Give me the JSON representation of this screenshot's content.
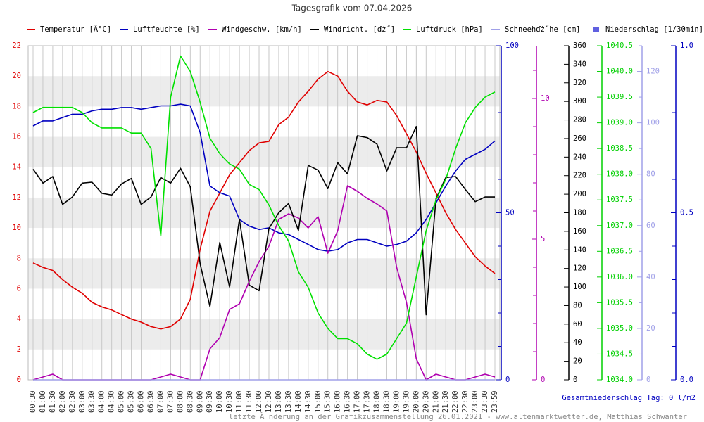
{
  "chart_data": {
    "type": "line",
    "title": "Tagesgrafik vom 07.04.2026",
    "annotations": [
      "Gesamtniederschlag Tag: 0 l/m2",
      "letzte Ä nderung an der Grafikzusammenstellung 26.01.2021 - www.altenmarktwetter.de, Matthias Schwanter"
    ],
    "categories": [
      "00:30",
      "01:00",
      "01:30",
      "02:00",
      "02:30",
      "03:00",
      "03:30",
      "04:00",
      "04:30",
      "05:00",
      "05:30",
      "06:00",
      "06:30",
      "07:00",
      "07:30",
      "08:00",
      "08:30",
      "09:00",
      "09:30",
      "10:00",
      "10:30",
      "11:00",
      "11:30",
      "12:00",
      "12:30",
      "13:00",
      "13:30",
      "14:00",
      "14:30",
      "15:00",
      "15:30",
      "16:00",
      "16:30",
      "17:00",
      "17:30",
      "18:00",
      "18:30",
      "19:00",
      "19:30",
      "20:00",
      "20:30",
      "21:00",
      "21:30",
      "22:00",
      "22:30",
      "23:00",
      "23:30",
      "23:59"
    ],
    "grid": true,
    "axes": [
      {
        "side": "left",
        "color": "#e00000",
        "ylim": [
          0,
          22
        ],
        "yticks": [
          0,
          2,
          4,
          6,
          8,
          10,
          12,
          14,
          16,
          18,
          20,
          22
        ]
      },
      {
        "side": "right",
        "color": "#0000c0",
        "ylim": [
          0,
          100
        ],
        "yticks": [
          0,
          50,
          100
        ],
        "minor_ticks": [
          10,
          20,
          30,
          40,
          60,
          70,
          80,
          90
        ]
      },
      {
        "side": "right",
        "color": "#b000b0",
        "ylim": [
          0,
          11.875
        ],
        "yticks": [
          0,
          5,
          10
        ],
        "minor_ticks": [
          1,
          2,
          3,
          4,
          6,
          7,
          8,
          9,
          11
        ]
      },
      {
        "side": "right",
        "color": "#000000",
        "ylim": [
          0,
          360
        ],
        "yticks": [
          0,
          20,
          40,
          60,
          80,
          100,
          120,
          140,
          160,
          180,
          200,
          220,
          240,
          260,
          280,
          300,
          320,
          340,
          360
        ]
      },
      {
        "side": "right",
        "color": "#00d000",
        "ylim": [
          1034,
          1040.5
        ],
        "yticks": [
          {
            "value": 1034,
            "label": "1034.0"
          },
          {
            "value": 1034.5,
            "label": "1034.5"
          },
          {
            "value": 1035,
            "label": "1035.0"
          },
          {
            "value": 1035.5,
            "label": "1035.5"
          },
          {
            "value": 1036,
            "label": "1036.0"
          },
          {
            "value": 1036.5,
            "label": "1036.5"
          },
          {
            "value": 1037,
            "label": "1037.0"
          },
          {
            "value": 1037.5,
            "label": "1037.5"
          },
          {
            "value": 1038,
            "label": "1038.0"
          },
          {
            "value": 1038.5,
            "label": "1038.5"
          },
          {
            "value": 1039,
            "label": "1039.0"
          },
          {
            "value": 1039.5,
            "label": "1039.5"
          },
          {
            "value": 1040,
            "label": "1040.0"
          },
          {
            "value": 1040.5,
            "label": "1040.5"
          }
        ]
      },
      {
        "side": "right",
        "color": "#a0a0e8",
        "ylim": [
          0,
          130
        ],
        "yticks": [
          0,
          20,
          40,
          60,
          80,
          100,
          120
        ],
        "minor_ticks": [
          10,
          30,
          50,
          70,
          90,
          110,
          130
        ]
      },
      {
        "side": "right",
        "color": "#0000c0",
        "ylim": [
          0,
          1
        ],
        "yticks": [
          {
            "value": 0,
            "label": "0.0"
          },
          {
            "value": 0.5,
            "label": "0.5"
          },
          {
            "value": 1,
            "label": "1.0"
          }
        ],
        "minor_ticks": [
          0.1,
          0.2,
          0.3,
          0.4,
          0.6,
          0.7,
          0.8,
          0.9
        ]
      }
    ],
    "series": [
      {
        "name": "Temperatur [Â°C]",
        "color": "#e00000",
        "axis": 0,
        "values": [
          7.7,
          7.4,
          7.2,
          6.6,
          6.1,
          5.7,
          5.1,
          4.8,
          4.6,
          4.3,
          4.0,
          3.8,
          3.5,
          3.35,
          3.5,
          4.0,
          5.3,
          8.6,
          11.1,
          12.3,
          13.5,
          14.3,
          15.1,
          15.6,
          15.7,
          16.8,
          17.3,
          18.3,
          19.0,
          19.8,
          20.3,
          20.0,
          19.0,
          18.3,
          18.1,
          18.4,
          18.3,
          17.4,
          16.2,
          15.0,
          13.6,
          12.3,
          11.0,
          9.9,
          9.0,
          8.1,
          7.5,
          7.0
        ]
      },
      {
        "name": "Luftfeuchte [%]",
        "color": "#0000c0",
        "axis": 1,
        "values": [
          76,
          77.5,
          77.5,
          78.5,
          79.5,
          79.5,
          80.5,
          81,
          81,
          81.5,
          81.5,
          81,
          81.5,
          82,
          82,
          82.5,
          82,
          74,
          58,
          56,
          55,
          48,
          46,
          45,
          45.5,
          44,
          43.5,
          42,
          40.5,
          39,
          38.5,
          39,
          41,
          42,
          42,
          41,
          40,
          40.5,
          41.5,
          44,
          48,
          53,
          58,
          62.5,
          66,
          67.5,
          69,
          71.5
        ]
      },
      {
        "name": "Windgeschw. [km/h]",
        "color": "#b000b0",
        "axis": 2,
        "values": [
          0,
          0.1,
          0.2,
          0,
          0,
          0,
          0,
          0,
          0,
          0,
          0,
          0,
          0,
          0.1,
          0.2,
          0.1,
          0,
          0,
          1.1,
          1.5,
          2.5,
          2.7,
          3.5,
          4.2,
          4.75,
          5.7,
          5.9,
          5.75,
          5.4,
          5.8,
          4.5,
          5.3,
          6.9,
          6.7,
          6.45,
          6.25,
          6.0,
          4.0,
          2.75,
          0.75,
          0,
          0.2,
          0.1,
          0,
          0,
          0.1,
          0.2,
          0.1
        ]
      },
      {
        "name": "Windricht. [ďż˝]",
        "color": "#000000",
        "axis": 3,
        "values": [
          227,
          212,
          219,
          189,
          197,
          212,
          213,
          201,
          199,
          211,
          217,
          189,
          197,
          218,
          212,
          228,
          208,
          125,
          79,
          148,
          100,
          173,
          102,
          96,
          163,
          180,
          190,
          161,
          231,
          226,
          206,
          234,
          222,
          263,
          261,
          254,
          225,
          250,
          250,
          273,
          70,
          195,
          218,
          219,
          205,
          192,
          197,
          197
        ]
      },
      {
        "name": "Luftdruck [hPa]",
        "color": "#00e000",
        "axis": 4,
        "values": [
          1039.2,
          1039.3,
          1039.3,
          1039.3,
          1039.3,
          1039.2,
          1039.0,
          1038.9,
          1038.9,
          1038.9,
          1038.8,
          1038.8,
          1038.5,
          1036.8,
          1039.5,
          1040.3,
          1040.0,
          1039.4,
          1038.7,
          1038.4,
          1038.2,
          1038.1,
          1037.8,
          1037.7,
          1037.4,
          1037.0,
          1036.7,
          1036.1,
          1035.8,
          1035.3,
          1035.0,
          1034.8,
          1034.8,
          1034.7,
          1034.5,
          1034.4,
          1034.5,
          1034.8,
          1035.1,
          1036.0,
          1036.9,
          1037.5,
          1037.9,
          1038.5,
          1039.0,
          1039.3,
          1039.5,
          1039.6
        ]
      },
      {
        "name": "Schneehďż˝he [cm]",
        "color": "#a0a0e8",
        "axis": 5,
        "values": [
          0,
          0,
          0,
          0,
          0,
          0,
          0,
          0,
          0,
          0,
          0,
          0,
          0,
          0,
          0,
          0,
          0,
          0,
          0,
          0,
          0,
          0,
          0,
          0,
          0,
          0,
          0,
          0,
          0,
          0,
          0,
          0,
          0,
          0,
          0,
          0,
          0,
          0,
          0,
          0,
          0,
          0,
          0,
          0,
          0,
          0,
          0,
          0
        ]
      },
      {
        "name": "Niederschlag [1/30min]",
        "color": "#6060e0",
        "axis": 6,
        "style": "bar",
        "values": [
          0,
          0,
          0,
          0,
          0,
          0,
          0,
          0,
          0,
          0,
          0,
          0,
          0,
          0,
          0,
          0,
          0,
          0,
          0,
          0,
          0,
          0,
          0,
          0,
          0,
          0,
          0,
          0,
          0,
          0,
          0,
          0,
          0,
          0,
          0,
          0,
          0,
          0,
          0,
          0,
          0,
          0,
          0,
          0,
          0,
          0,
          0,
          0
        ]
      }
    ]
  }
}
